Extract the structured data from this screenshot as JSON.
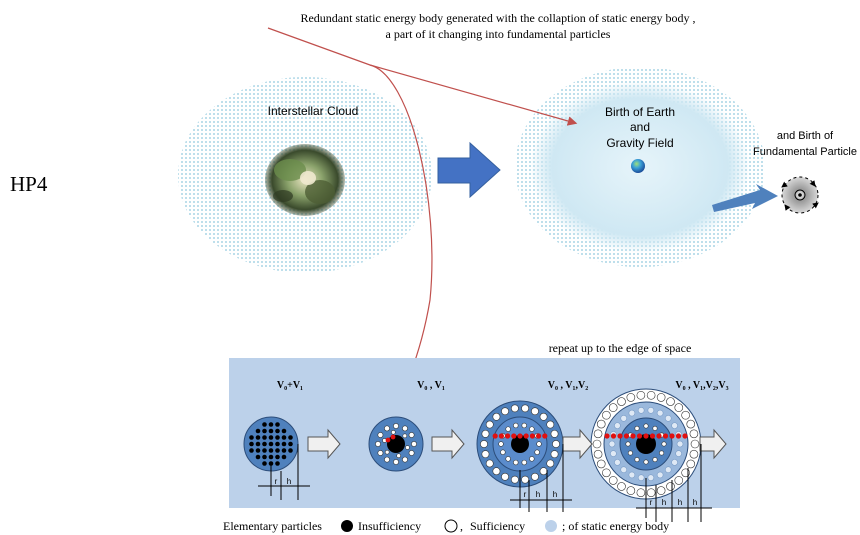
{
  "side_label": "HP4",
  "caption": {
    "line1": "Redundant  static energy body  generated  with  the  collaption  of static energy body ,",
    "line2": "a part of it  changing  into  fundamental particles"
  },
  "left_cloud": {
    "label": "Interstellar Cloud"
  },
  "right_cloud": {
    "line1": "Birth of Earth",
    "line2": "and",
    "line3": "Gravity Field"
  },
  "particle_birth": {
    "line1": "and  Birth of",
    "line2": "Fundamental Particle"
  },
  "panel": {
    "repeat_text": "repeat up to the edge of space",
    "stages": [
      {
        "label": "V₀+V₁"
      },
      {
        "label": "V₀ , V₁"
      },
      {
        "label": "V₀ , V₁,V₂"
      },
      {
        "label": "V₀ , V₁,V₂,V₃"
      }
    ],
    "dim_r": "r",
    "dim_h": "h"
  },
  "legend": {
    "elementary": "Elementary particles",
    "insufficiency": "Insufficiency",
    "comma1": ",",
    "sufficiency": "Sufficiency",
    "static": "; of static energy body"
  },
  "colors": {
    "cloud_dot": "#8fc9de",
    "cloud_fill": "#d3ecf6",
    "arrow_blue": "#4472c4",
    "red_line": "#c0504d",
    "panel_bg": "#bcd1ea",
    "sphere_blue": "#4f81bd",
    "red_dots": "#e01010"
  }
}
